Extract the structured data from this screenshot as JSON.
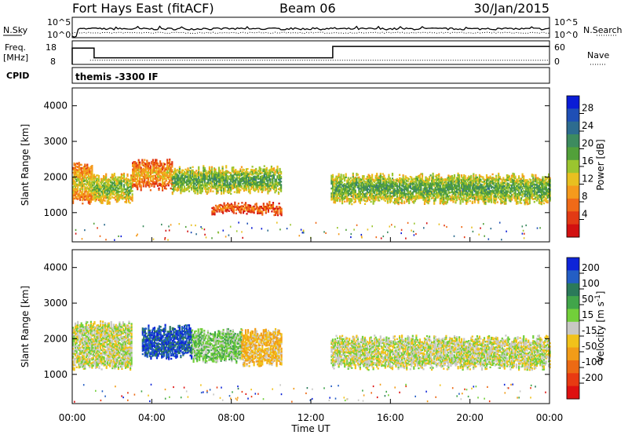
{
  "header": {
    "station": "Fort Hays East (fitACF)",
    "beam": "Beam 06",
    "date": "30/Jan/2015"
  },
  "noise_panel": {
    "left_label": "N.Sky",
    "right_label": "N.Search",
    "left_ticks": [
      "10^5",
      "10^0"
    ],
    "right_ticks": [
      "10^5",
      "10^0"
    ]
  },
  "freq_panel": {
    "left_label_1": "Freq.",
    "left_label_2": "[MHz]",
    "right_label": "Nave",
    "left_ticks": [
      "18",
      "8"
    ],
    "right_ticks": [
      "60",
      "0"
    ],
    "freq_steps": [
      {
        "t_start": 0.0,
        "t_end": 1.1,
        "value": 16.0
      },
      {
        "t_start": 1.1,
        "t_end": 13.1,
        "value": 11.2
      },
      {
        "t_start": 13.1,
        "t_end": 24.0,
        "value": 16.8
      }
    ],
    "nave_level": 12
  },
  "cpid": {
    "label": "CPID",
    "program": "themis -3300 IF"
  },
  "power_panel": {
    "ylabel": "Slant Range [km]",
    "yticks": [
      "4000",
      "3000",
      "2000",
      "1000"
    ],
    "colorbar_label": "Power [dB]",
    "colorbar_ticks": [
      "28",
      "24",
      "20",
      "16",
      "12",
      "8",
      "4"
    ],
    "colors": [
      "#0a1cd6",
      "#1f4fb5",
      "#2d6c8f",
      "#3d8b5f",
      "#52a03a",
      "#9bc52f",
      "#e8c020",
      "#f59a1c",
      "#ef6a18",
      "#e23a14",
      "#d21010"
    ]
  },
  "velocity_panel": {
    "ylabel": "Slant Range [km]",
    "yticks": [
      "4000",
      "3000",
      "2000",
      "1000"
    ],
    "colorbar_label": "Velocity [m s^-1]",
    "colorbar_ticks": [
      "200",
      "100",
      "50",
      "15",
      "-15",
      "-50",
      "-100",
      "-200"
    ],
    "colors": [
      "#0e24d8",
      "#245ec4",
      "#2b7a5a",
      "#41a54a",
      "#72cf3a",
      "#c8c8c4",
      "#f1c21a",
      "#f29c18",
      "#ec6a14",
      "#e83a12",
      "#de1010"
    ]
  },
  "x_axis": {
    "label": "Time UT",
    "ticks": [
      "00:00",
      "04:00",
      "08:00",
      "12:00",
      "16:00",
      "20:00",
      "00:00"
    ]
  },
  "chart_data": [
    {
      "type": "heatmap",
      "title": "Fort Hays East (fitACF) Beam 06 30/Jan/2015",
      "quantity": "Power",
      "xlabel": "Time UT",
      "ylabel": "Slant Range [km]",
      "xlim": [
        "00:00",
        "24:00"
      ],
      "ylim": [
        180,
        4500
      ],
      "colorbar": {
        "label": "Power [dB]",
        "range": [
          0,
          30
        ]
      },
      "backscatter_bands": [
        {
          "t_start": 0.0,
          "t_end": 1.0,
          "range_km": [
            1300,
            2300
          ],
          "power_db": 14
        },
        {
          "t_start": 1.0,
          "t_end": 3.0,
          "range_km": [
            1300,
            2000
          ],
          "power_db": 18
        },
        {
          "t_start": 3.0,
          "t_end": 5.0,
          "range_km": [
            1700,
            2400
          ],
          "power_db": 12
        },
        {
          "t_start": 5.0,
          "t_end": 10.5,
          "range_km": [
            1600,
            2200
          ],
          "power_db": 20
        },
        {
          "t_start": 7.0,
          "t_end": 10.5,
          "range_km": [
            1000,
            1200
          ],
          "power_db": 9
        },
        {
          "t_start": 13.0,
          "t_end": 24.0,
          "range_km": [
            1300,
            2000
          ],
          "power_db": 20
        }
      ]
    },
    {
      "type": "heatmap",
      "quantity": "Velocity",
      "xlabel": "Time UT",
      "ylabel": "Slant Range [km]",
      "xlim": [
        "00:00",
        "24:00"
      ],
      "ylim": [
        180,
        4500
      ],
      "colorbar": {
        "label": "Velocity [m s^-1]",
        "range": [
          -250,
          250
        ]
      },
      "backscatter_bands": [
        {
          "t_start": 0.0,
          "t_end": 3.0,
          "range_km": [
            1200,
            2400
          ],
          "velocity_ms": 0
        },
        {
          "t_start": 3.5,
          "t_end": 6.0,
          "range_km": [
            1500,
            2300
          ],
          "velocity_ms": 200
        },
        {
          "t_start": 6.0,
          "t_end": 8.5,
          "range_km": [
            1400,
            2200
          ],
          "velocity_ms": 50
        },
        {
          "t_start": 8.5,
          "t_end": 10.5,
          "range_km": [
            1300,
            2200
          ],
          "velocity_ms": -60
        },
        {
          "t_start": 13.0,
          "t_end": 24.0,
          "range_km": [
            1200,
            2000
          ],
          "velocity_ms": 0
        }
      ]
    }
  ]
}
